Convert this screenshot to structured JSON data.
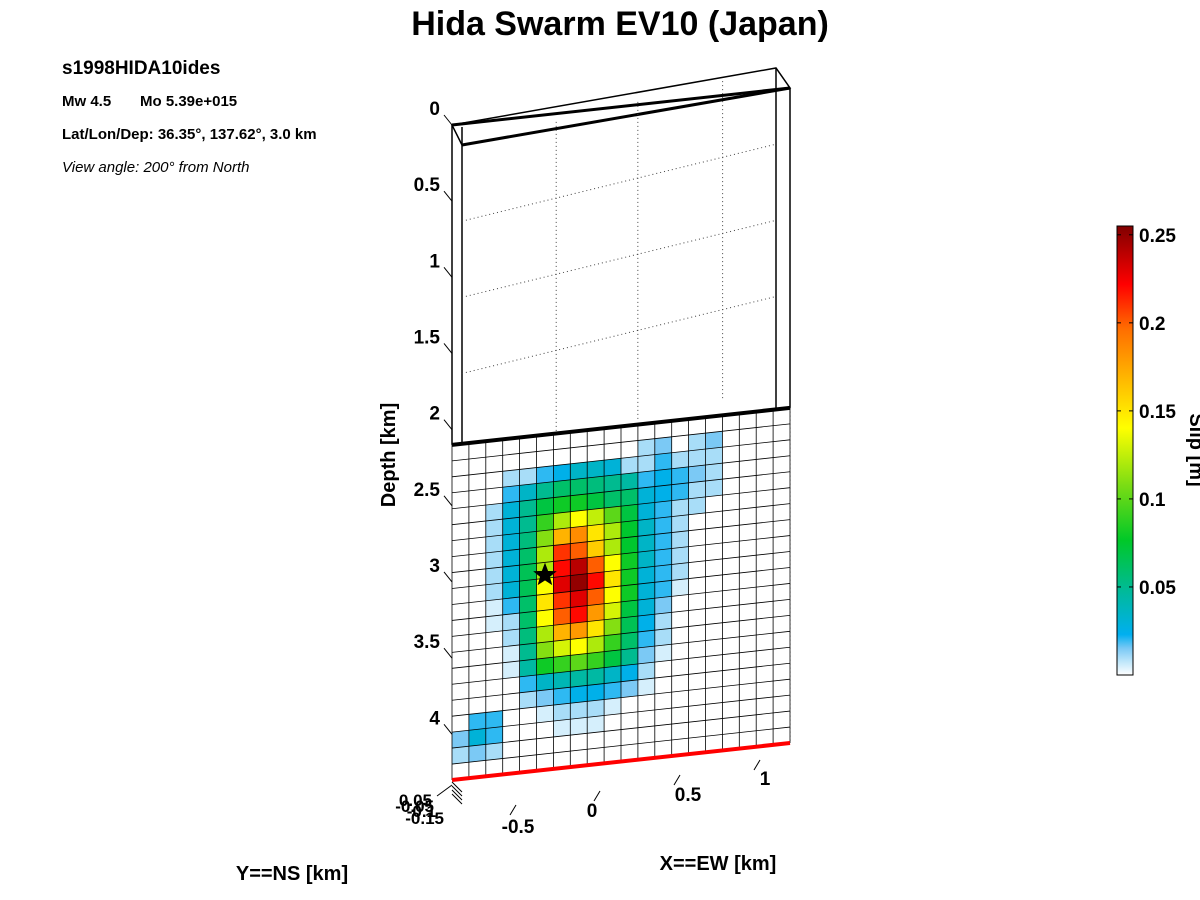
{
  "title": "Hida Swarm EV10 (Japan)",
  "info": {
    "event_id": "s1998HIDA10ides",
    "mw_label": "Mw 4.5",
    "mo_label": "Mo 5.39e+015",
    "location_label": "Lat/Lon/Dep: 36.35°, 137.62°, 3.0 km",
    "view_label": "View angle: 200° from North"
  },
  "chart_data": {
    "type": "heatmap",
    "title": "Hida Swarm EV10 (Japan)",
    "zlabel": "Depth [km]",
    "xlabel": "X==EW [km]",
    "ylabel": "Y==NS [km]",
    "colorbar_label": "Slip [m]",
    "depth_ticks": [
      "0",
      "0.5",
      "1",
      "1.5",
      "2",
      "2.5",
      "3",
      "3.5",
      "4"
    ],
    "depth_range": [
      0,
      4.3
    ],
    "x_ticks": [
      "-0.5",
      "0",
      "0.5",
      "1"
    ],
    "y_ticks": [
      "0.05",
      "-0.05",
      "-0.1",
      "-0.15"
    ],
    "colorbar_ticks": [
      "0.05",
      "0.1",
      "0.15",
      "0.2",
      "0.25"
    ],
    "colorbar_range": [
      0,
      0.255
    ],
    "fault_top_depth_km": 2.1,
    "grid_columns": 20,
    "grid_rows": 21,
    "slip_grid_m": [
      [
        0,
        0,
        0,
        0,
        0,
        0,
        0,
        0,
        0,
        0,
        0,
        0,
        0,
        0,
        0,
        0,
        0,
        0,
        0,
        0
      ],
      [
        0,
        0,
        0,
        0,
        0,
        0,
        0,
        0,
        0,
        0,
        0,
        0.01,
        0.015,
        0,
        0.01,
        0.015,
        0,
        0,
        0,
        0
      ],
      [
        0,
        0,
        0,
        0.01,
        0.01,
        0.02,
        0.025,
        0.035,
        0.035,
        0.03,
        0.01,
        0.01,
        0.02,
        0.01,
        0.01,
        0.01,
        0,
        0,
        0,
        0
      ],
      [
        0,
        0,
        0,
        0.02,
        0.035,
        0.05,
        0.06,
        0.06,
        0.055,
        0.05,
        0.045,
        0.02,
        0.025,
        0.02,
        0.015,
        0.01,
        0,
        0,
        0,
        0
      ],
      [
        0,
        0,
        0.01,
        0.03,
        0.05,
        0.07,
        0.08,
        0.08,
        0.07,
        0.06,
        0.06,
        0.03,
        0.025,
        0.02,
        0.01,
        0.01,
        0,
        0,
        0,
        0
      ],
      [
        0,
        0,
        0.01,
        0.03,
        0.05,
        0.09,
        0.12,
        0.14,
        0.125,
        0.1,
        0.07,
        0.03,
        0.02,
        0.01,
        0.01,
        0,
        0,
        0,
        0,
        0
      ],
      [
        0,
        0,
        0.01,
        0.03,
        0.055,
        0.11,
        0.17,
        0.185,
        0.15,
        0.12,
        0.075,
        0.035,
        0.02,
        0.01,
        0,
        0,
        0,
        0,
        0,
        0
      ],
      [
        0,
        0,
        0.01,
        0.03,
        0.06,
        0.12,
        0.21,
        0.2,
        0.16,
        0.12,
        0.075,
        0.035,
        0.02,
        0.01,
        0,
        0,
        0,
        0,
        0,
        0
      ],
      [
        0,
        0,
        0.01,
        0.03,
        0.065,
        0.12,
        0.22,
        0.24,
        0.2,
        0.14,
        0.08,
        0.035,
        0.02,
        0.01,
        0,
        0,
        0,
        0,
        0,
        0
      ],
      [
        0,
        0,
        0.01,
        0.03,
        0.065,
        0.14,
        0.23,
        0.25,
        0.22,
        0.15,
        0.08,
        0.03,
        0.02,
        0.01,
        0,
        0,
        0,
        0,
        0,
        0
      ],
      [
        0,
        0,
        0.005,
        0.02,
        0.06,
        0.15,
        0.21,
        0.23,
        0.2,
        0.14,
        0.08,
        0.03,
        0.02,
        0.005,
        0,
        0,
        0,
        0,
        0,
        0
      ],
      [
        0,
        0,
        0.005,
        0.01,
        0.06,
        0.14,
        0.2,
        0.22,
        0.18,
        0.13,
        0.07,
        0.03,
        0.015,
        0,
        0,
        0,
        0,
        0,
        0,
        0
      ],
      [
        0,
        0,
        0,
        0.01,
        0.055,
        0.12,
        0.17,
        0.18,
        0.15,
        0.11,
        0.065,
        0.025,
        0.01,
        0,
        0,
        0,
        0,
        0,
        0,
        0
      ],
      [
        0,
        0,
        0,
        0.005,
        0.05,
        0.11,
        0.13,
        0.14,
        0.12,
        0.09,
        0.06,
        0.02,
        0.01,
        0,
        0,
        0,
        0,
        0,
        0,
        0
      ],
      [
        0,
        0,
        0,
        0.005,
        0.045,
        0.08,
        0.09,
        0.1,
        0.09,
        0.07,
        0.05,
        0.015,
        0.005,
        0,
        0,
        0,
        0,
        0,
        0,
        0
      ],
      [
        0,
        0,
        0,
        0,
        0.02,
        0.035,
        0.04,
        0.045,
        0.045,
        0.035,
        0.025,
        0.01,
        0,
        0,
        0,
        0,
        0,
        0,
        0,
        0
      ],
      [
        0,
        0,
        0,
        0,
        0.01,
        0.015,
        0.02,
        0.025,
        0.025,
        0.02,
        0.015,
        0.005,
        0,
        0,
        0,
        0,
        0,
        0,
        0,
        0
      ],
      [
        0,
        0.02,
        0.02,
        0,
        0,
        0.005,
        0.01,
        0.01,
        0.01,
        0.005,
        0,
        0,
        0,
        0,
        0,
        0,
        0,
        0,
        0,
        0
      ],
      [
        0.015,
        0.03,
        0.02,
        0,
        0,
        0,
        0.005,
        0.005,
        0.005,
        0,
        0,
        0,
        0,
        0,
        0,
        0,
        0,
        0,
        0,
        0
      ],
      [
        0.01,
        0.015,
        0.01,
        0,
        0,
        0,
        0,
        0,
        0,
        0,
        0,
        0,
        0,
        0,
        0,
        0,
        0,
        0,
        0,
        0
      ],
      [
        0,
        0,
        0,
        0,
        0,
        0,
        0,
        0,
        0,
        0,
        0,
        0,
        0,
        0,
        0,
        0,
        0,
        0,
        0,
        0
      ]
    ],
    "hypocenter": {
      "column": 5.5,
      "row": 8.8
    },
    "colors": {
      "grid_line": "#000000",
      "fault_top_line": "#000000",
      "fault_bottom_line": "#ff0000",
      "hypocenter": "#000000"
    }
  }
}
